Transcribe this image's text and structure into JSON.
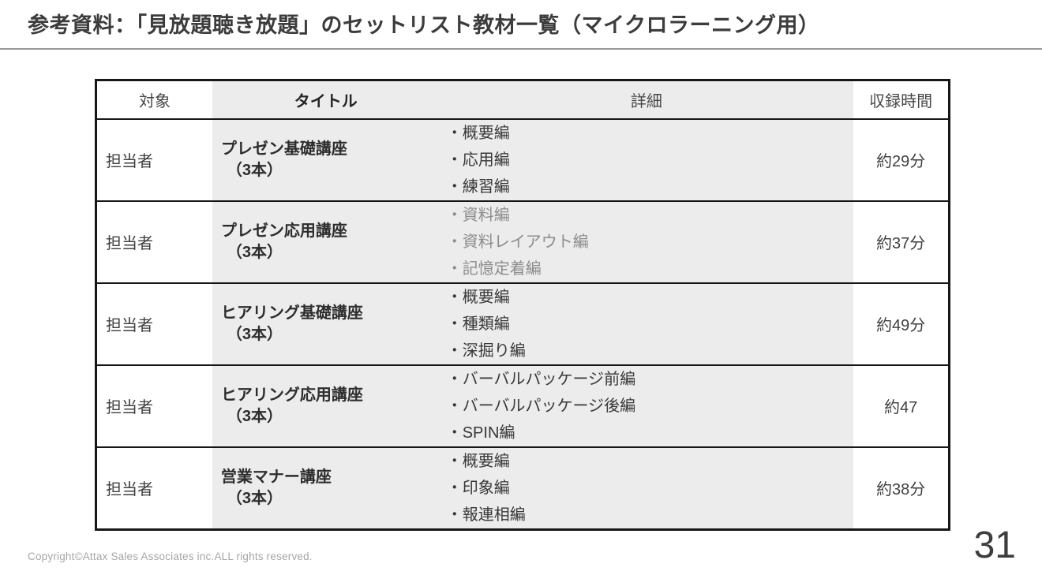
{
  "slide": {
    "title": "参考資料：「見放題聴き放題」のセットリスト教材一覧（マイクロラーニング用）",
    "page_number": "31",
    "copyright": "Copyright©Attax Sales Associates inc.ALL rights reserved."
  },
  "table": {
    "headers": [
      "対象",
      "タイトル",
      "詳細",
      "収録時間"
    ],
    "rows": [
      {
        "target": "担当者",
        "title": "プレゼン基礎講座",
        "count": "（3本）",
        "details": [
          "・概要編",
          "・応用編",
          "・練習編"
        ],
        "duration": "約29分",
        "muted": false
      },
      {
        "target": "担当者",
        "title": "プレゼン応用講座",
        "count": "（3本）",
        "details": [
          "・資料編",
          "・資料レイアウト編",
          "・記憶定着編"
        ],
        "duration": "約37分",
        "muted": true
      },
      {
        "target": "担当者",
        "title": "ヒアリング基礎講座",
        "count": "（3本）",
        "details": [
          "・概要編",
          "・種類編",
          "・深掘り編"
        ],
        "duration": "約49分",
        "muted": false
      },
      {
        "target": "担当者",
        "title": "ヒアリング応用講座",
        "count": "（3本）",
        "details": [
          "・バーバルパッケージ前編",
          "・バーバルパッケージ後編",
          "・SPIN編"
        ],
        "duration": "約47",
        "muted": false
      },
      {
        "target": "担当者",
        "title": "営業マナー講座",
        "count": "（3本）",
        "details": [
          "・概要編",
          "・印象編",
          "・報連相編"
        ],
        "duration": "約38分",
        "muted": false
      }
    ],
    "colors": {
      "cell_shade": "#ececec",
      "border": "#161616",
      "muted_text": "#8c8c8c",
      "title_text": "#3c3c3c"
    }
  }
}
